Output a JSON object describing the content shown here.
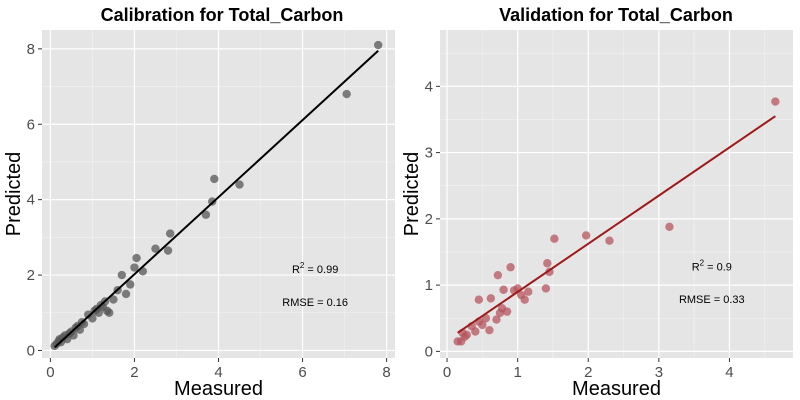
{
  "chart_data": [
    {
      "type": "scatter",
      "title": "Calibration for Total_Carbon",
      "xlabel": "Measured",
      "ylabel": "Predicted",
      "xlim": [
        -0.2,
        8.2
      ],
      "ylim": [
        -0.2,
        8.5
      ],
      "xticks": [
        0,
        2,
        4,
        6,
        8
      ],
      "yticks": [
        0,
        2,
        4,
        6,
        8
      ],
      "grid": true,
      "panel_color": "#e5e5e5",
      "point_color": "#555555",
      "line_color": "#000000",
      "annotations": {
        "r2_prefix": "R",
        "r2_sup": "2",
        "r2_value": " = 0.99",
        "rmse_text": "RMSE = 0.16",
        "r2_at": [
          6.3,
          2.05
        ],
        "rmse_at": [
          6.3,
          1.18
        ]
      },
      "fit_line": {
        "x": [
          0.1,
          7.8
        ],
        "y": [
          0.08,
          7.95
        ]
      },
      "x": [
        0.1,
        0.15,
        0.2,
        0.22,
        0.25,
        0.3,
        0.35,
        0.4,
        0.45,
        0.5,
        0.55,
        0.6,
        0.65,
        0.7,
        0.75,
        0.8,
        0.9,
        1.0,
        1.05,
        1.1,
        1.15,
        1.2,
        1.25,
        1.3,
        1.35,
        1.4,
        1.5,
        1.6,
        1.7,
        1.8,
        1.9,
        2.0,
        2.05,
        2.2,
        2.5,
        2.8,
        2.85,
        3.7,
        3.85,
        3.9,
        4.5,
        7.05,
        7.8
      ],
      "y": [
        0.12,
        0.18,
        0.25,
        0.3,
        0.22,
        0.35,
        0.4,
        0.3,
        0.45,
        0.5,
        0.4,
        0.6,
        0.65,
        0.55,
        0.75,
        0.7,
        0.95,
        0.85,
        1.05,
        1.1,
        1.0,
        1.2,
        1.15,
        1.3,
        1.05,
        1.0,
        1.35,
        1.6,
        2.0,
        1.5,
        1.75,
        2.2,
        2.45,
        2.1,
        2.7,
        2.65,
        3.1,
        3.6,
        3.95,
        4.55,
        4.4,
        6.8,
        8.1
      ]
    },
    {
      "type": "scatter",
      "title": "Validation for Total_Carbon",
      "xlabel": "Measured",
      "ylabel": "Predicted",
      "xlim": [
        -0.1,
        4.9
      ],
      "ylim": [
        -0.1,
        4.85
      ],
      "xticks": [
        0,
        1,
        2,
        3,
        4
      ],
      "yticks": [
        0,
        1,
        2,
        3,
        4
      ],
      "grid": true,
      "panel_color": "#e5e5e5",
      "point_color": "#b5555e",
      "line_color": "#9e1a1a",
      "annotations": {
        "r2_prefix": "R",
        "r2_sup": "2",
        "r2_value": " = 0.9",
        "rmse_text": "RMSE = 0.33",
        "r2_at": [
          3.75,
          1.22
        ],
        "rmse_at": [
          3.75,
          0.73
        ]
      },
      "fit_line": {
        "x": [
          0.15,
          4.65
        ],
        "y": [
          0.28,
          3.55
        ]
      },
      "x": [
        0.15,
        0.2,
        0.22,
        0.25,
        0.28,
        0.35,
        0.4,
        0.45,
        0.45,
        0.5,
        0.55,
        0.6,
        0.62,
        0.7,
        0.72,
        0.75,
        0.78,
        0.8,
        0.85,
        0.9,
        0.95,
        1.0,
        1.05,
        1.1,
        1.15,
        1.4,
        1.42,
        1.45,
        1.52,
        1.97,
        2.3,
        3.15,
        4.65
      ],
      "y": [
        0.15,
        0.15,
        0.28,
        0.22,
        0.25,
        0.38,
        0.3,
        0.45,
        0.78,
        0.4,
        0.5,
        0.32,
        0.8,
        0.48,
        1.15,
        0.58,
        0.65,
        0.93,
        0.6,
        1.27,
        0.92,
        0.95,
        0.85,
        0.78,
        0.9,
        0.95,
        1.33,
        1.2,
        1.7,
        1.75,
        1.67,
        1.88,
        3.77
      ]
    }
  ]
}
